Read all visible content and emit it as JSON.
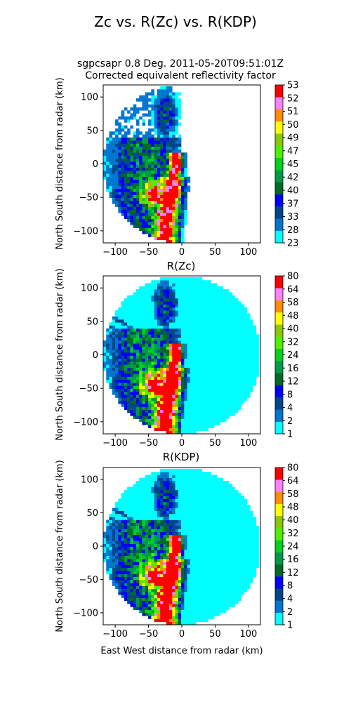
{
  "figure": {
    "suptitle": "Zc vs. R(Zc) vs. R(KDP)"
  },
  "chart_data": [
    {
      "type": "heatmap",
      "title_line1": "sgpcsapr 0.8 Deg. 2011-05-20T09:51:01Z",
      "title_line2": "Corrected equivalent reflectivity factor",
      "xlabel": "",
      "ylabel": "North South distance from radar (km)",
      "xlim": [
        -118,
        118
      ],
      "ylim": [
        -118,
        118
      ],
      "xticks": [
        -100,
        -50,
        0,
        50,
        100
      ],
      "yticks": [
        -100,
        -50,
        0,
        50,
        100
      ],
      "colorbar_ticks": [
        "23",
        "28",
        "33",
        "37",
        "40",
        "42",
        "45",
        "47",
        "49",
        "50",
        "51",
        "52",
        "53"
      ],
      "field": "reflectivity",
      "coverage": "partial"
    },
    {
      "type": "heatmap",
      "title": "R(Zc)",
      "xlabel": "",
      "ylabel": "North South distance from radar (km)",
      "xlim": [
        -118,
        118
      ],
      "ylim": [
        -118,
        118
      ],
      "xticks": [
        -100,
        -50,
        0,
        50,
        100
      ],
      "yticks": [
        -100,
        -50,
        0,
        50,
        100
      ],
      "colorbar_ticks": [
        "1",
        "2",
        "4",
        "8",
        "12",
        "16",
        "24",
        "32",
        "40",
        "48",
        "58",
        "64",
        "80"
      ],
      "field": "rain_rate_z",
      "coverage": "full"
    },
    {
      "type": "heatmap",
      "title": "R(KDP)",
      "xlabel": "East West distance from radar (km)",
      "ylabel": "North South distance from radar (km)",
      "xlim": [
        -118,
        118
      ],
      "ylim": [
        -118,
        118
      ],
      "xticks": [
        -100,
        -50,
        0,
        50,
        100
      ],
      "yticks": [
        -100,
        -50,
        0,
        50,
        100
      ],
      "colorbar_ticks": [
        "1",
        "2",
        "4",
        "8",
        "12",
        "16",
        "24",
        "32",
        "40",
        "48",
        "58",
        "64",
        "80"
      ],
      "field": "rain_rate_kdp",
      "coverage": "full"
    }
  ],
  "colormap": [
    "#00ffff",
    "#0076d0",
    "#00468a",
    "#0000ff",
    "#006a28",
    "#009b46",
    "#00d020",
    "#4ef000",
    "#8ac800",
    "#ffff00",
    "#ff8c00",
    "#ff80ff",
    "#ff0000"
  ],
  "radar_range_km": 118
}
